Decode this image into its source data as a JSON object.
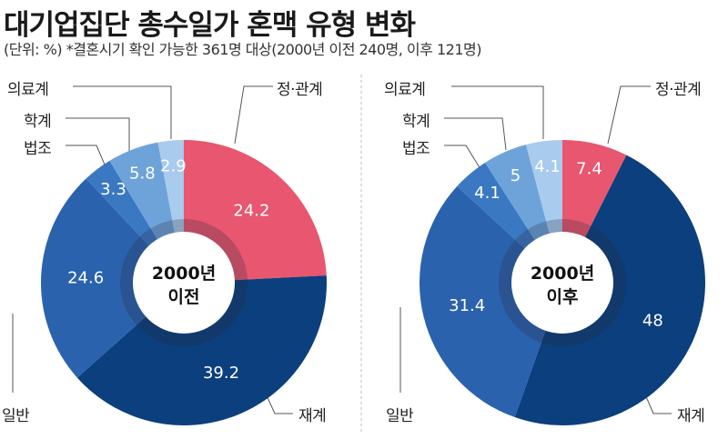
{
  "title": "대기업집단 총수일가 혼맥 유형 변화",
  "subtitle": "(단위: %) *결혼시기 확인 가능한 361명 대상(2000년 이전 240명, 이후 121명)",
  "colors": {
    "정·관계": "#e8566f",
    "재계": "#0b3f7d",
    "일반": "#2a62ae",
    "법조": "#3a78c2",
    "학계": "#6ea3da",
    "의료계": "#a8cbee"
  },
  "chart_data": [
    {
      "type": "pie",
      "donut": true,
      "center_label": [
        "2000년",
        "이전"
      ],
      "categories": [
        "정·관계",
        "재계",
        "일반",
        "법조",
        "학계",
        "의료계"
      ],
      "values": [
        24.2,
        39.2,
        24.6,
        3.3,
        5.8,
        2.9
      ]
    },
    {
      "type": "pie",
      "donut": true,
      "center_label": [
        "2000년",
        "이후"
      ],
      "categories": [
        "정·관계",
        "재계",
        "일반",
        "법조",
        "학계",
        "의료계"
      ],
      "values": [
        7.4,
        48,
        31.4,
        4.1,
        5,
        4.1
      ]
    }
  ]
}
